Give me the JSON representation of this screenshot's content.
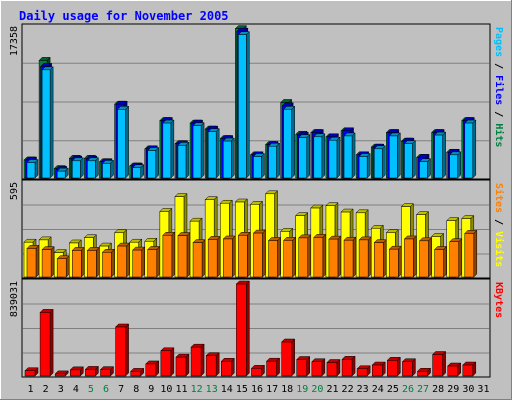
{
  "chart_data": {
    "type": "bar",
    "title": "Daily usage for November 2005",
    "categories": [
      "1",
      "2",
      "3",
      "4",
      "5",
      "6",
      "7",
      "8",
      "9",
      "10",
      "11",
      "12",
      "13",
      "14",
      "15",
      "16",
      "17",
      "18",
      "19",
      "20",
      "21",
      "22",
      "23",
      "24",
      "25",
      "26",
      "27",
      "28",
      "29",
      "30",
      "31"
    ],
    "weekend_days": [
      "5",
      "6",
      "12",
      "13",
      "19",
      "20",
      "26",
      "27"
    ],
    "panels": [
      {
        "id": "pages-files-hits",
        "ymax": 17358,
        "ymax_label": "17358",
        "axis_label_parts": [
          {
            "text": "Pages",
            "color": "#00c0ff"
          },
          {
            "text": " / ",
            "color": "#000000"
          },
          {
            "text": "Files",
            "color": "#0000ff"
          },
          {
            "text": " / ",
            "color": "#000000"
          },
          {
            "text": "Hits",
            "color": "#008040"
          }
        ],
        "series": [
          {
            "name": "Hits",
            "color": "#008040",
            "values": [
              2100,
              13700,
              1100,
              2300,
              2300,
              1900,
              8600,
              1400,
              3400,
              6700,
              4000,
              6400,
              5700,
              4600,
              17400,
              2700,
              3900,
              8800,
              5100,
              5300,
              4800,
              5500,
              2700,
              3600,
              5300,
              4300,
              2400,
              5300,
              3000,
              6700,
              0
            ]
          },
          {
            "name": "Files",
            "color": "#0000ff",
            "values": [
              2100,
              13000,
              1000,
              2200,
              2200,
              1900,
              8600,
              1400,
              3400,
              6700,
              4000,
              6400,
              5700,
              4600,
              17100,
              2700,
              3900,
              8400,
              5000,
              5300,
              4800,
              5500,
              2700,
              3600,
              5300,
              4300,
              2400,
              5300,
              3000,
              6700,
              0
            ]
          },
          {
            "name": "Pages",
            "color": "#00c0ff",
            "values": [
              1800,
              12600,
              800,
              2000,
              2000,
              1700,
              8000,
              1200,
              3200,
              6400,
              3800,
              6100,
              5400,
              4300,
              16700,
              2500,
              3700,
              8000,
              4700,
              4800,
              4400,
              4900,
              2500,
              3400,
              4900,
              4000,
              1900,
              5000,
              2700,
              6400,
              0
            ]
          }
        ]
      },
      {
        "id": "visits-sites",
        "ymax": 595,
        "ymax_label": "595",
        "axis_label_parts": [
          {
            "text": "Sites",
            "color": "#ff8000"
          },
          {
            "text": " / ",
            "color": "#000000"
          },
          {
            "text": "Visits",
            "color": "#ffff00"
          }
        ],
        "series": [
          {
            "name": "Visits",
            "color": "#ffff00",
            "values": [
              225,
              240,
              158,
              220,
              254,
              200,
              286,
              225,
              231,
              424,
              520,
              361,
              500,
              477,
              485,
              470,
              538,
              295,
              397,
              446,
              461,
              420,
              415,
              315,
              286,
              455,
              403,
              262,
              364,
              378,
              0
            ]
          },
          {
            "name": "Sites",
            "color": "#ff8000",
            "values": [
              185,
              177,
              118,
              172,
              172,
              160,
              200,
              174,
              178,
              270,
              268,
              222,
              243,
              246,
              270,
              284,
              236,
              237,
              253,
              256,
              245,
              238,
              240,
              222,
              180,
              246,
              234,
              178,
              228,
              282,
              0
            ]
          }
        ]
      },
      {
        "id": "kbytes",
        "ymax": 839031,
        "ymax_label": "839031",
        "axis_label_parts": [
          {
            "text": "KBytes",
            "color": "#ff0000"
          }
        ],
        "series": [
          {
            "name": "KBytes",
            "color": "#ff0000",
            "values": [
              48000,
              580000,
              19000,
              56000,
              60000,
              58000,
              447000,
              42000,
              110000,
              230000,
              172000,
              263000,
              186000,
              134000,
              839000,
              70000,
              135000,
              310000,
              150000,
              130000,
              123000,
              152000,
              66000,
              100000,
              143000,
              130000,
              43000,
              196000,
              91000,
              100000,
              0
            ]
          }
        ]
      }
    ]
  }
}
